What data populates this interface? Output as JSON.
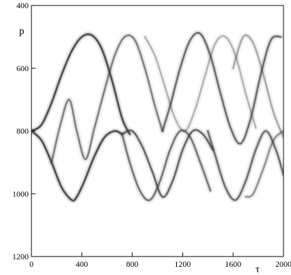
{
  "chart_data": {
    "type": "heatmap",
    "title": "",
    "xlabel": "τ",
    "ylabel": "p",
    "xlim": [
      0,
      2000
    ],
    "ylim": [
      400,
      1200
    ],
    "y_inverted": true,
    "xticks": [
      0,
      400,
      800,
      1200,
      1600,
      2000
    ],
    "yticks": [
      400,
      600,
      800,
      1000,
      1200
    ],
    "colormap": "grayscale",
    "ink_color": "#3a3a3a",
    "frame_color": "#000000",
    "grid": false,
    "traces": [
      {
        "x": [
          0,
          80,
          160,
          240,
          320,
          400,
          480,
          560,
          640,
          720,
          780
        ],
        "y": [
          800,
          780,
          710,
          620,
          545,
          500,
          495,
          540,
          640,
          760,
          810
        ],
        "intensity": 0.85
      },
      {
        "x": [
          0,
          80,
          160,
          240,
          320,
          360,
          420,
          500,
          580,
          660,
          720
        ],
        "y": [
          800,
          830,
          900,
          980,
          1020,
          1010,
          960,
          880,
          820,
          800,
          810
        ],
        "intensity": 0.85
      },
      {
        "x": [
          160,
          230,
          300,
          360,
          430,
          500,
          580,
          660,
          740,
          820,
          900,
          980,
          1040
        ],
        "y": [
          900,
          780,
          700,
          800,
          890,
          790,
          670,
          560,
          500,
          510,
          600,
          720,
          800
        ],
        "intensity": 0.55
      },
      {
        "x": [
          720,
          800,
          880,
          960,
          1040,
          1120,
          1200,
          1280,
          1360,
          1440
        ],
        "y": [
          810,
          800,
          850,
          930,
          1010,
          960,
          860,
          800,
          810,
          860
        ],
        "intensity": 0.7
      },
      {
        "x": [
          720,
          780,
          860,
          940,
          1020,
          1100,
          1180,
          1260,
          1340,
          1420
        ],
        "y": [
          810,
          900,
          990,
          1020,
          960,
          860,
          800,
          820,
          900,
          990
        ],
        "intensity": 0.6
      },
      {
        "x": [
          1040,
          1100,
          1180,
          1260,
          1340,
          1420,
          1500,
          1580,
          1660,
          1740,
          1820,
          1900,
          1980
        ],
        "y": [
          800,
          720,
          600,
          510,
          490,
          560,
          680,
          790,
          840,
          760,
          620,
          510,
          500
        ],
        "intensity": 0.65
      },
      {
        "x": [
          1400,
          1460,
          1540,
          1620,
          1700,
          1780,
          1860,
          1940,
          2000
        ],
        "y": [
          800,
          880,
          980,
          1020,
          960,
          860,
          800,
          860,
          940
        ],
        "intensity": 0.65
      },
      {
        "x": [
          1700,
          1760,
          1840,
          1920,
          2000
        ],
        "y": [
          1010,
          1000,
          920,
          830,
          800
        ],
        "intensity": 0.45
      },
      {
        "x": [
          900,
          980,
          1060,
          1140,
          1220,
          1300,
          1380,
          1460,
          1540,
          1620,
          1700,
          1780
        ],
        "y": [
          500,
          560,
          660,
          760,
          800,
          730,
          620,
          520,
          500,
          560,
          680,
          790
        ],
        "intensity": 0.3
      },
      {
        "x": [
          1600,
          1680,
          1760,
          1840,
          1920,
          2000
        ],
        "y": [
          600,
          500,
          520,
          620,
          740,
          820
        ],
        "intensity": 0.35
      }
    ]
  }
}
